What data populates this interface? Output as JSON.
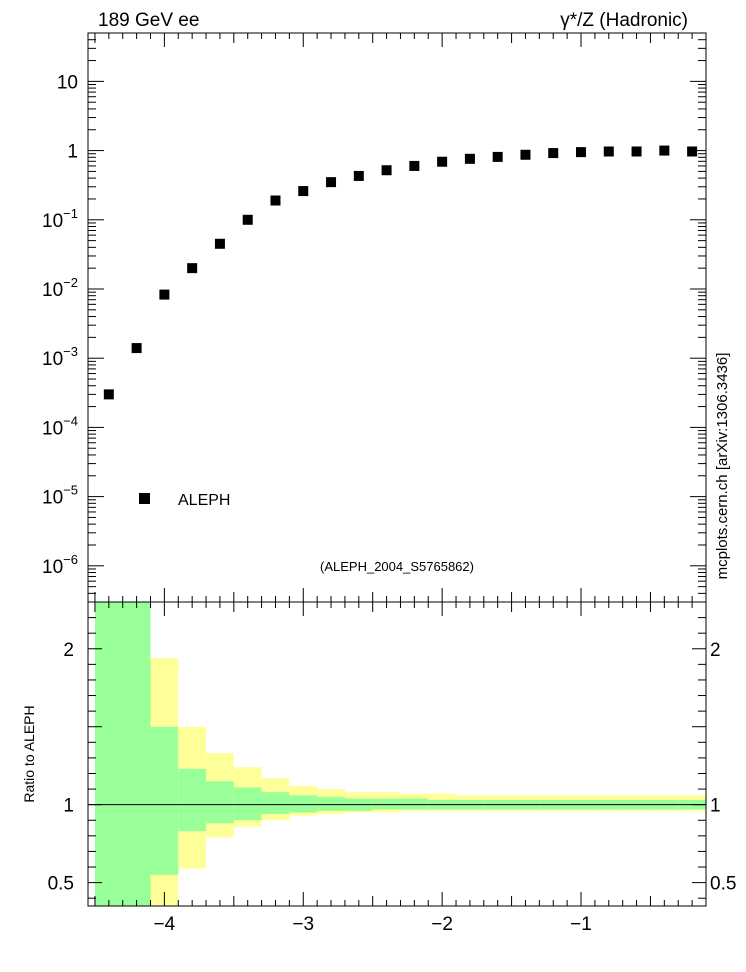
{
  "header": {
    "left": "189 GeV ee",
    "right": "γ*/Z (Hadronic)",
    "side": "mcplots.cern.ch [arXiv:1306.3436]",
    "analysis": "(ALEPH_2004_S5765862)"
  },
  "legend": {
    "label": "ALEPH",
    "placement": "lower-left"
  },
  "colors": {
    "inner_band": "#99ff99",
    "outer_band": "#ffff99",
    "marker": "#000000",
    "axis": "#000000",
    "analysis_text": "#999999"
  },
  "chart_data": [
    {
      "type": "scatter",
      "panel": "main",
      "yscale": "log",
      "xlim": [
        -4.55,
        -0.1
      ],
      "ylim": [
        3e-07,
        50
      ],
      "y_ticks": [
        {
          "value": 1e-06,
          "base": "10",
          "exp": "−6"
        },
        {
          "value": 1e-05,
          "base": "10",
          "exp": "−5"
        },
        {
          "value": 0.0001,
          "base": "10",
          "exp": "−4"
        },
        {
          "value": 0.001,
          "base": "10",
          "exp": "−3"
        },
        {
          "value": 0.01,
          "base": "10",
          "exp": "−2"
        },
        {
          "value": 0.1,
          "base": "10",
          "exp": "−1"
        },
        {
          "value": 1,
          "base": "1",
          "exp": ""
        },
        {
          "value": 10,
          "base": "10",
          "exp": ""
        }
      ],
      "series": [
        {
          "name": "ALEPH",
          "x": [
            -4.4,
            -4.2,
            -4.0,
            -3.8,
            -3.6,
            -3.4,
            -3.2,
            -3.0,
            -2.8,
            -2.6,
            -2.4,
            -2.2,
            -2.0,
            -1.8,
            -1.6,
            -1.4,
            -1.2,
            -1.0,
            -0.8,
            -0.6,
            -0.4,
            -0.2
          ],
          "y": [
            0.0003,
            0.0014,
            0.0083,
            0.02,
            0.045,
            0.1,
            0.19,
            0.26,
            0.35,
            0.43,
            0.52,
            0.6,
            0.69,
            0.76,
            0.81,
            0.87,
            0.92,
            0.95,
            0.97,
            0.97,
            1.0,
            0.97
          ]
        }
      ]
    },
    {
      "type": "area",
      "panel": "ratio",
      "ylabel": "Ratio to ALEPH",
      "xlim": [
        -4.55,
        -0.1
      ],
      "ylim": [
        0.35,
        2.3
      ],
      "x_ticks": [
        {
          "value": -4,
          "label": "−4"
        },
        {
          "value": -3,
          "label": "−3"
        },
        {
          "value": -2,
          "label": "−2"
        },
        {
          "value": -1,
          "label": "−1"
        }
      ],
      "y_ticks": [
        {
          "value": 0.5,
          "label": "0.5"
        },
        {
          "value": 1,
          "label": "1"
        },
        {
          "value": 2,
          "label": "2"
        }
      ],
      "reference_line": 1,
      "bins": [
        {
          "lo": -4.5,
          "hi": -4.3,
          "in_lo": 0.2,
          "in_hi": 3.0,
          "out_lo": 0.2,
          "out_hi": 3.0
        },
        {
          "lo": -4.3,
          "hi": -4.1,
          "in_lo": 0.2,
          "in_hi": 3.0,
          "out_lo": 0.2,
          "out_hi": 3.0
        },
        {
          "lo": -4.1,
          "hi": -3.9,
          "in_lo": 0.55,
          "in_hi": 1.5,
          "out_lo": 0.2,
          "out_hi": 1.94
        },
        {
          "lo": -3.9,
          "hi": -3.7,
          "in_lo": 0.83,
          "in_hi": 1.23,
          "out_lo": 0.59,
          "out_hi": 1.5
        },
        {
          "lo": -3.7,
          "hi": -3.5,
          "in_lo": 0.88,
          "in_hi": 1.15,
          "out_lo": 0.79,
          "out_hi": 1.33
        },
        {
          "lo": -3.5,
          "hi": -3.3,
          "in_lo": 0.9,
          "in_hi": 1.11,
          "out_lo": 0.86,
          "out_hi": 1.24
        },
        {
          "lo": -3.3,
          "hi": -3.1,
          "in_lo": 0.94,
          "in_hi": 1.08,
          "out_lo": 0.9,
          "out_hi": 1.17
        },
        {
          "lo": -3.1,
          "hi": -2.9,
          "in_lo": 0.95,
          "in_hi": 1.06,
          "out_lo": 0.93,
          "out_hi": 1.12
        },
        {
          "lo": -2.9,
          "hi": -2.7,
          "in_lo": 0.96,
          "in_hi": 1.05,
          "out_lo": 0.94,
          "out_hi": 1.1
        },
        {
          "lo": -2.7,
          "hi": -2.5,
          "in_lo": 0.96,
          "in_hi": 1.04,
          "out_lo": 0.95,
          "out_hi": 1.08
        },
        {
          "lo": -2.5,
          "hi": -2.3,
          "in_lo": 0.97,
          "in_hi": 1.04,
          "out_lo": 0.95,
          "out_hi": 1.08
        },
        {
          "lo": -2.3,
          "hi": -2.1,
          "in_lo": 0.97,
          "in_hi": 1.04,
          "out_lo": 0.96,
          "out_hi": 1.07
        },
        {
          "lo": -2.1,
          "hi": -1.9,
          "in_lo": 0.97,
          "in_hi": 1.03,
          "out_lo": 0.96,
          "out_hi": 1.07
        },
        {
          "lo": -1.9,
          "hi": -1.7,
          "in_lo": 0.97,
          "in_hi": 1.03,
          "out_lo": 0.96,
          "out_hi": 1.06
        },
        {
          "lo": -1.7,
          "hi": -1.5,
          "in_lo": 0.97,
          "in_hi": 1.03,
          "out_lo": 0.96,
          "out_hi": 1.06
        },
        {
          "lo": -1.5,
          "hi": -1.3,
          "in_lo": 0.97,
          "in_hi": 1.03,
          "out_lo": 0.96,
          "out_hi": 1.06
        },
        {
          "lo": -1.3,
          "hi": -1.1,
          "in_lo": 0.97,
          "in_hi": 1.03,
          "out_lo": 0.96,
          "out_hi": 1.06
        },
        {
          "lo": -1.1,
          "hi": -0.9,
          "in_lo": 0.97,
          "in_hi": 1.03,
          "out_lo": 0.96,
          "out_hi": 1.06
        },
        {
          "lo": -0.9,
          "hi": -0.7,
          "in_lo": 0.97,
          "in_hi": 1.03,
          "out_lo": 0.96,
          "out_hi": 1.06
        },
        {
          "lo": -0.7,
          "hi": -0.5,
          "in_lo": 0.97,
          "in_hi": 1.03,
          "out_lo": 0.96,
          "out_hi": 1.06
        },
        {
          "lo": -0.5,
          "hi": -0.3,
          "in_lo": 0.97,
          "in_hi": 1.03,
          "out_lo": 0.96,
          "out_hi": 1.06
        },
        {
          "lo": -0.3,
          "hi": -0.1,
          "in_lo": 0.97,
          "in_hi": 1.03,
          "out_lo": 0.96,
          "out_hi": 1.06
        }
      ]
    }
  ]
}
